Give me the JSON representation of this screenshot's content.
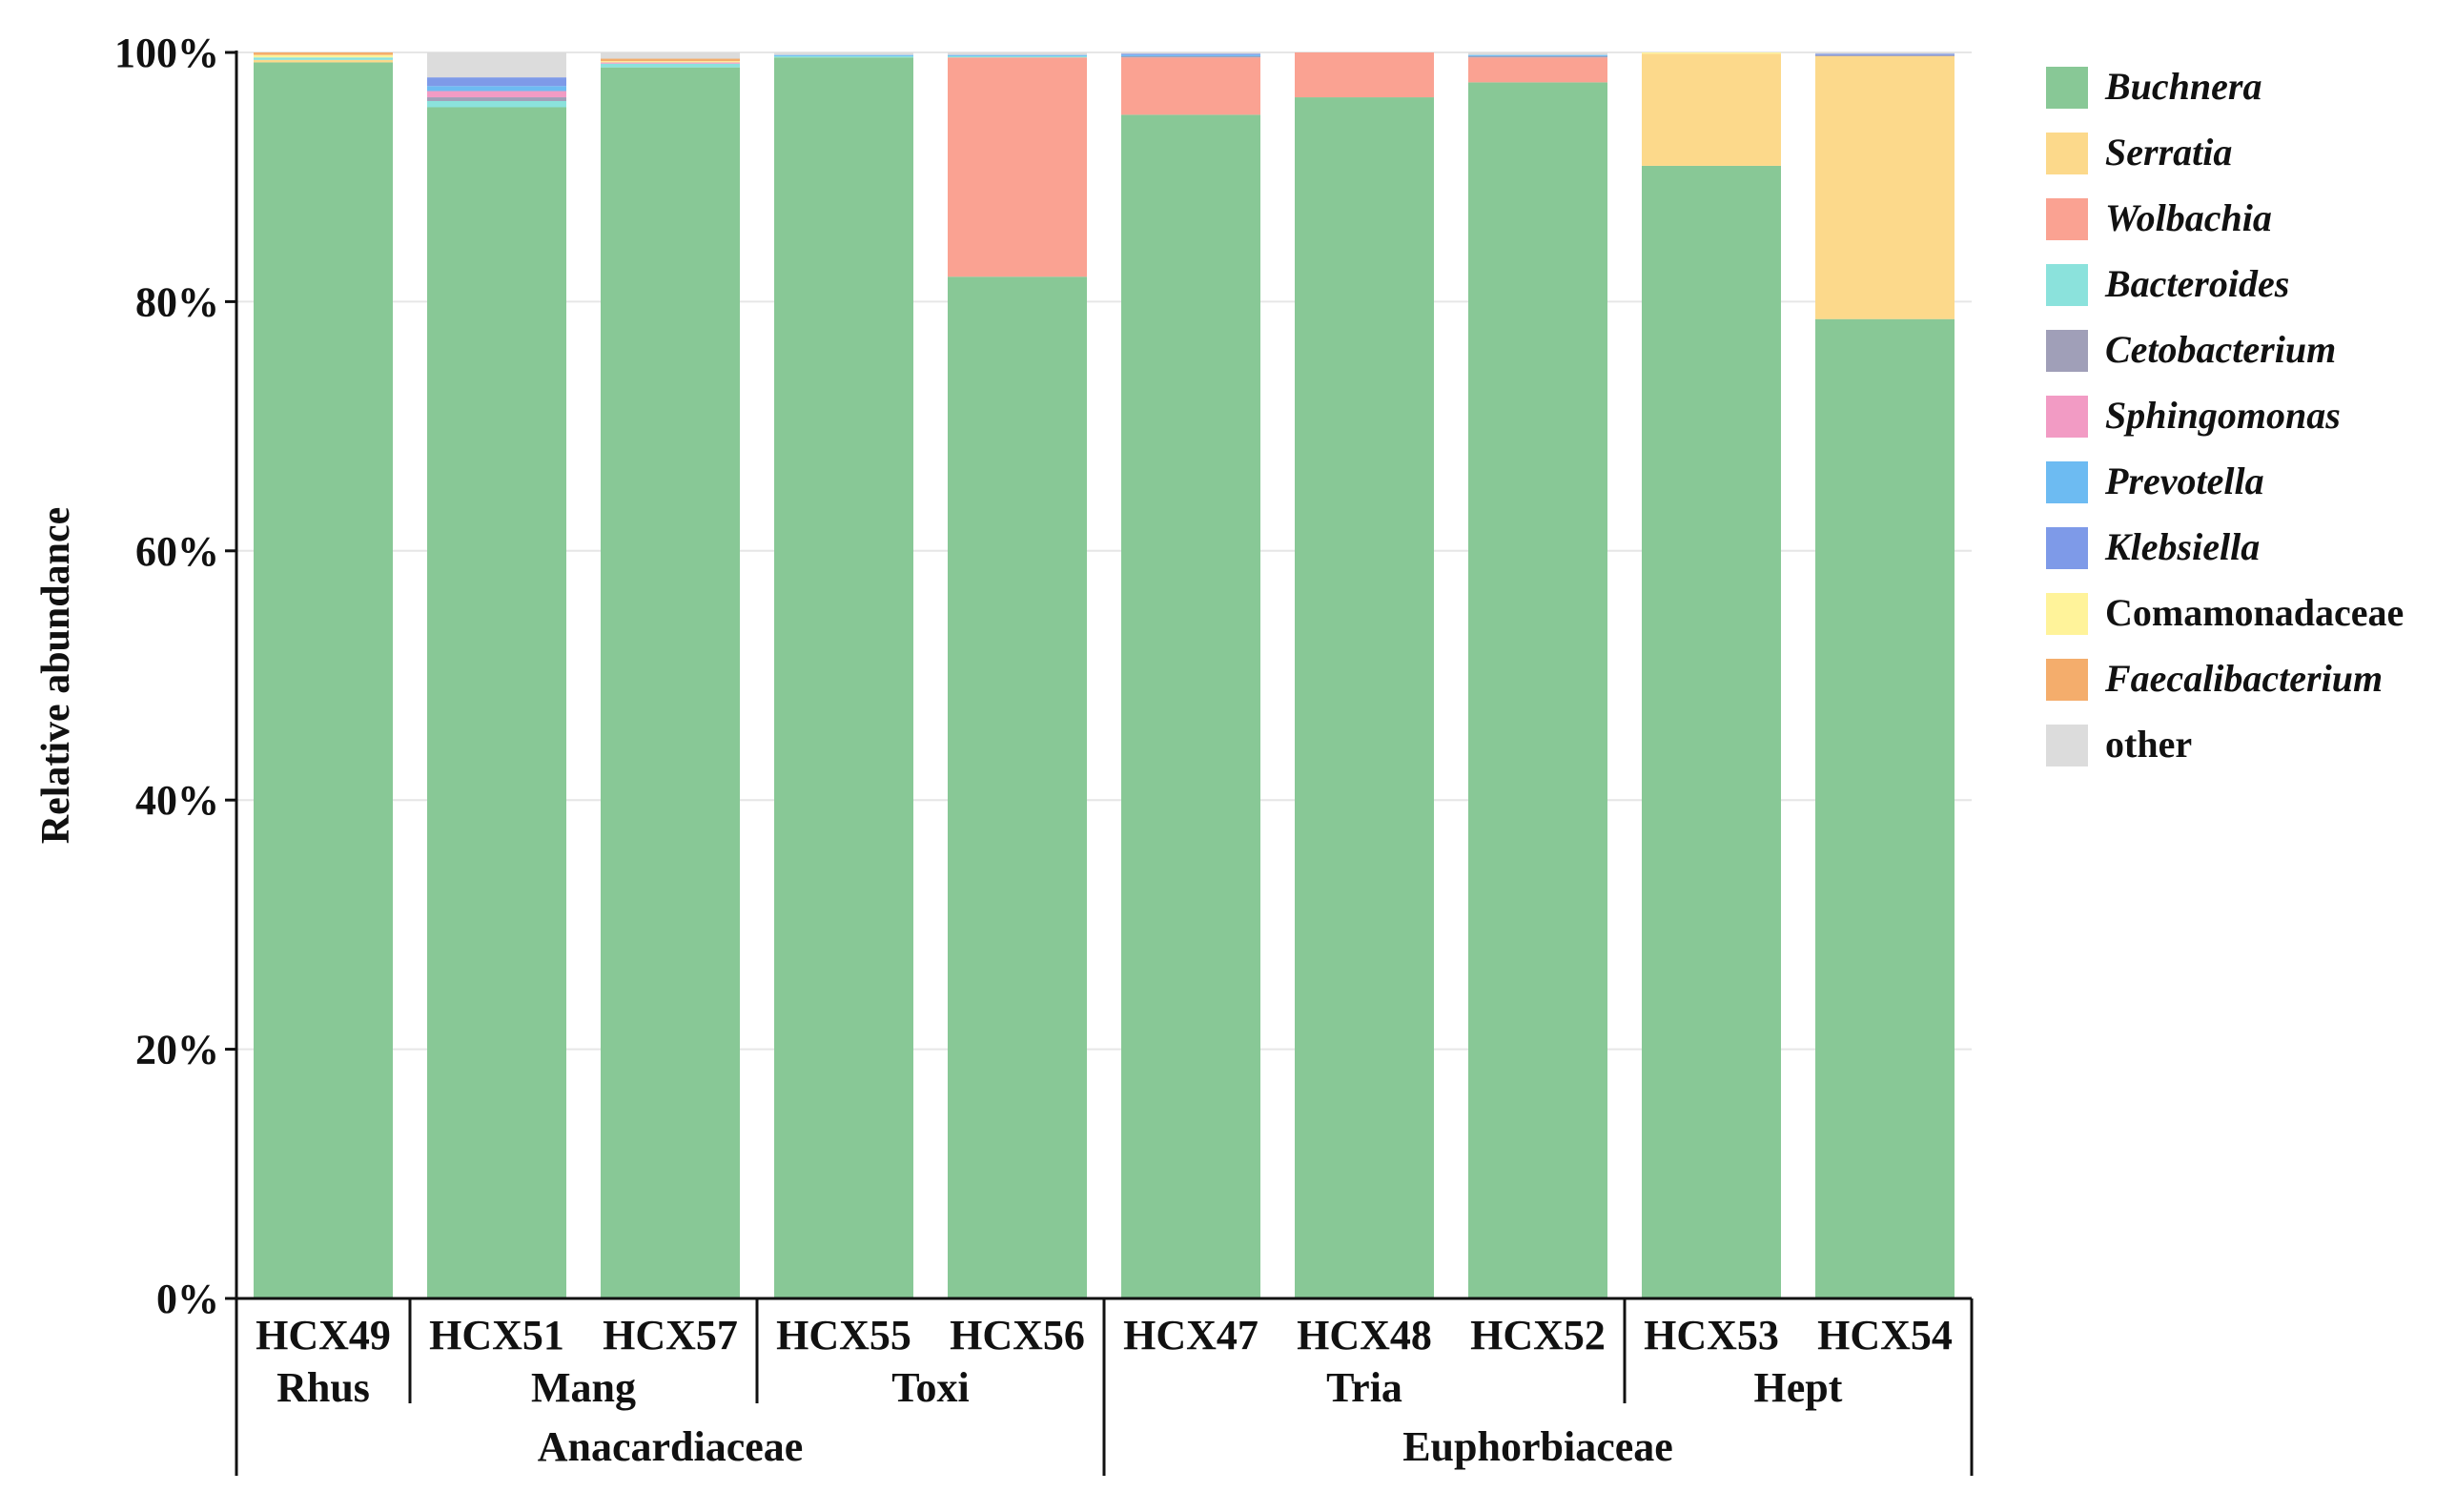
{
  "chart_data": {
    "type": "bar",
    "stacked": true,
    "ylabel": "Relative abundance",
    "ylim": [
      0,
      100
    ],
    "yticks": [
      "0%",
      "20%",
      "40%",
      "60%",
      "80%",
      "100%"
    ],
    "grid": true,
    "legend_position": "right",
    "categories": [
      "HCX49",
      "HCX51",
      "HCX57",
      "HCX55",
      "HCX56",
      "HCX47",
      "HCX48",
      "HCX52",
      "HCX53",
      "HCX54"
    ],
    "genus_groups": [
      {
        "label": "Rhus",
        "members": [
          "HCX49"
        ]
      },
      {
        "label": "Mang",
        "members": [
          "HCX51",
          "HCX57"
        ]
      },
      {
        "label": "Toxi",
        "members": [
          "HCX55",
          "HCX56"
        ]
      },
      {
        "label": "Tria",
        "members": [
          "HCX47",
          "HCX48",
          "HCX52"
        ]
      },
      {
        "label": "Hept",
        "members": [
          "HCX53",
          "HCX54"
        ]
      }
    ],
    "family_groups": [
      {
        "label": "Anacardiaceae",
        "members": [
          "HCX49",
          "HCX51",
          "HCX57",
          "HCX55",
          "HCX56"
        ]
      },
      {
        "label": "Euphorbiaceae",
        "members": [
          "HCX47",
          "HCX48",
          "HCX52",
          "HCX53",
          "HCX54"
        ]
      }
    ],
    "series": [
      {
        "name": "Buchnera",
        "italic": true,
        "color": "#88C896",
        "values": [
          99.2,
          95.6,
          98.8,
          99.6,
          82.0,
          95.0,
          96.4,
          97.6,
          90.9,
          78.6
        ]
      },
      {
        "name": "Serratia",
        "italic": true,
        "color": "#FCD98B",
        "values": [
          0.2,
          0.0,
          0.0,
          0.0,
          0.0,
          0.0,
          0.0,
          0.0,
          9.0,
          21.1
        ]
      },
      {
        "name": "Wolbachia",
        "italic": true,
        "color": "#FAA292",
        "values": [
          0.0,
          0.0,
          0.0,
          0.0,
          17.6,
          4.6,
          3.6,
          2.0,
          0.0,
          0.0
        ]
      },
      {
        "name": "Bacteroides",
        "italic": true,
        "color": "#8BE2DC",
        "values": [
          0.2,
          0.5,
          0.3,
          0.1,
          0.1,
          0.0,
          0.0,
          0.0,
          0.0,
          0.0
        ]
      },
      {
        "name": "Cetobacterium",
        "italic": true,
        "color": "#A09FB8",
        "values": [
          0.0,
          0.3,
          0.0,
          0.0,
          0.0,
          0.1,
          0.0,
          0.1,
          0.0,
          0.1
        ]
      },
      {
        "name": "Sphingomonas",
        "italic": true,
        "color": "#F29BC4",
        "values": [
          0.0,
          0.5,
          0.1,
          0.0,
          0.0,
          0.0,
          0.0,
          0.0,
          0.0,
          0.0
        ]
      },
      {
        "name": "Prevotella",
        "italic": true,
        "color": "#6DBBF2",
        "values": [
          0.0,
          0.4,
          0.0,
          0.1,
          0.1,
          0.1,
          0.0,
          0.1,
          0.0,
          0.0
        ]
      },
      {
        "name": "Klebsiella",
        "italic": true,
        "color": "#7E9AE8",
        "values": [
          0.0,
          0.7,
          0.0,
          0.0,
          0.0,
          0.1,
          0.0,
          0.0,
          0.0,
          0.1
        ]
      },
      {
        "name": "Comamonadaceae",
        "italic": false,
        "color": "#FFF39A",
        "values": [
          0.2,
          0.0,
          0.1,
          0.0,
          0.0,
          0.0,
          0.0,
          0.0,
          0.1,
          0.0
        ]
      },
      {
        "name": "Faecalibacterium",
        "italic": true,
        "color": "#F4AD6C",
        "values": [
          0.2,
          0.0,
          0.2,
          0.0,
          0.0,
          0.0,
          0.0,
          0.0,
          0.0,
          0.0
        ]
      },
      {
        "name": "other",
        "italic": false,
        "color": "#DCDCDC",
        "values": [
          0.0,
          2.0,
          0.5,
          0.2,
          0.2,
          0.1,
          0.0,
          0.2,
          0.0,
          0.1
        ]
      }
    ]
  }
}
